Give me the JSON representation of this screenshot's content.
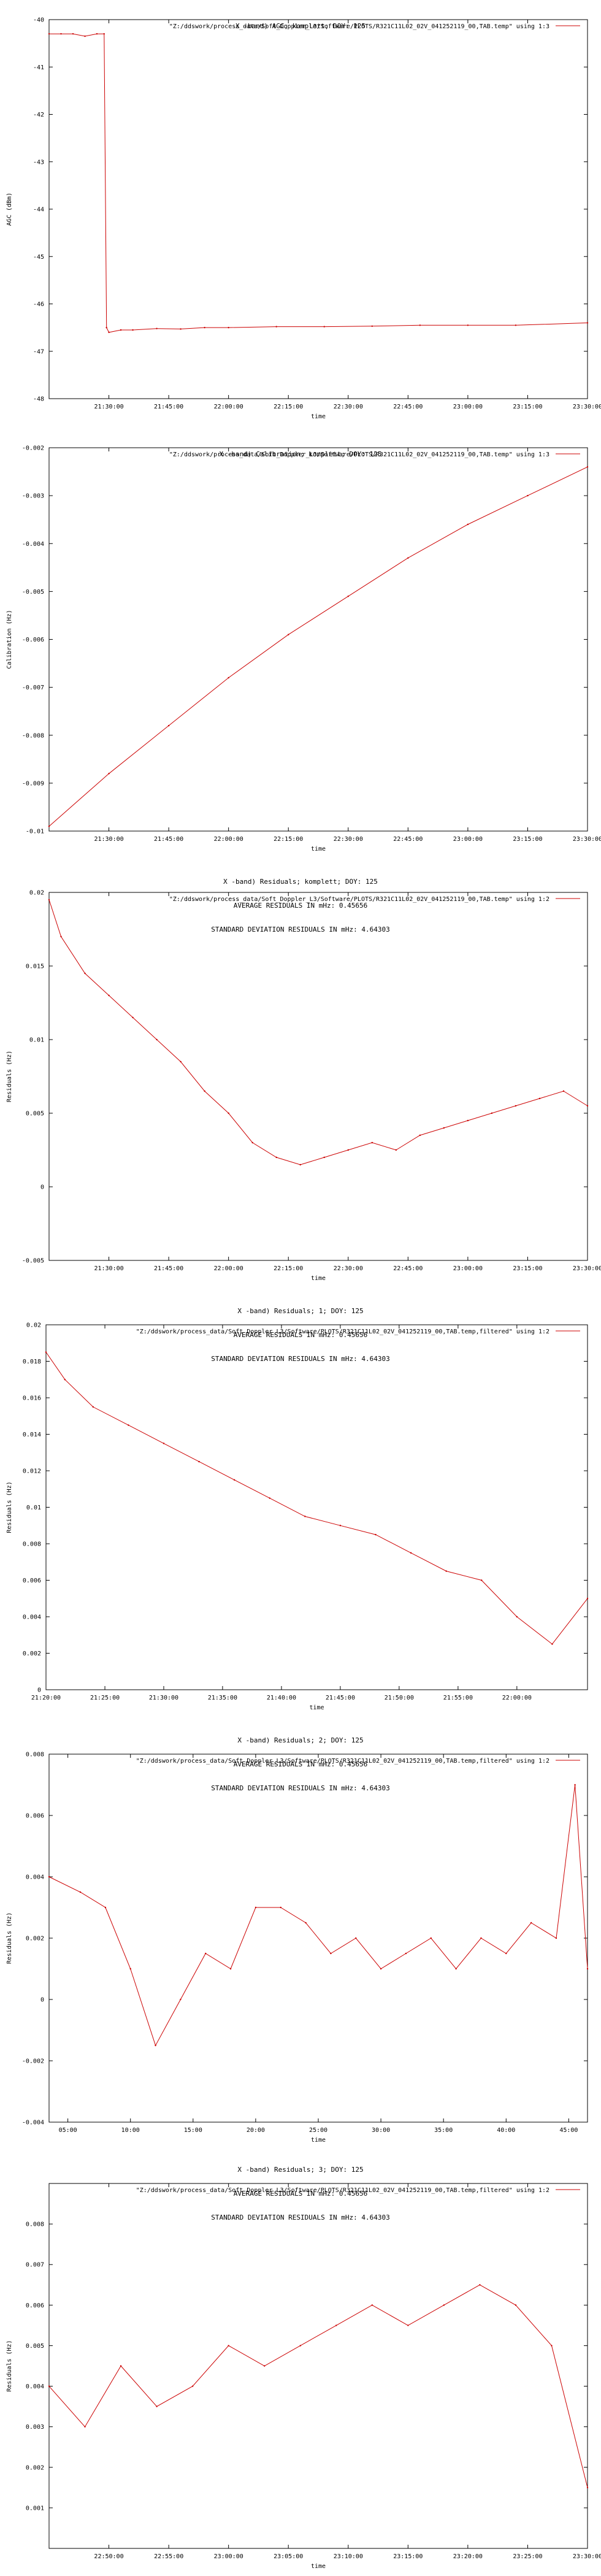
{
  "colors": {
    "series": "#cc0000",
    "axis": "#000000",
    "background": "#ffffff"
  },
  "chart_data": [
    {
      "id": "agc",
      "type": "line",
      "title_lines": [
        "X -band) AGC; komplett; DOY: 125"
      ],
      "legend": "\"Z:/ddswork/process_data/Soft_Doppler_L3/Software/PLOTS/R321C11L02_02V_041252119_00,TAB.temp\" using 1:3",
      "xlabel": "time",
      "ylabel": "AGC (dBm)",
      "xlim": [
        21.25,
        23.5
      ],
      "ylim": [
        -48,
        -40
      ],
      "xtick_values": [
        21.5,
        21.75,
        22.0,
        22.25,
        22.5,
        22.75,
        23.0,
        23.25,
        23.5
      ],
      "xtick_labels": [
        "21:30:00",
        "21:45:00",
        "22:00:00",
        "22:15:00",
        "22:30:00",
        "22:45:00",
        "23:00:00",
        "23:15:00",
        "23:30:00"
      ],
      "ytick_values": [
        -48,
        -47,
        -46,
        -45,
        -44,
        -43,
        -42,
        -41,
        -40
      ],
      "ytick_labels": [
        "-48",
        "-47",
        "-46",
        "-45",
        "-44",
        "-43",
        "-42",
        "-41",
        "-40"
      ],
      "x": [
        21.25,
        21.3,
        21.35,
        21.4,
        21.45,
        21.48,
        21.49,
        21.5,
        21.55,
        21.6,
        21.7,
        21.8,
        21.9,
        22.0,
        22.2,
        22.4,
        22.6,
        22.8,
        23.0,
        23.2,
        23.5
      ],
      "y": [
        -40.3,
        -40.3,
        -40.3,
        -40.35,
        -40.3,
        -40.3,
        -46.5,
        -46.6,
        -46.55,
        -46.55,
        -46.52,
        -46.53,
        -46.5,
        -46.5,
        -46.48,
        -46.48,
        -46.47,
        -46.45,
        -46.45,
        -46.45,
        -46.4
      ]
    },
    {
      "id": "calibration",
      "type": "line",
      "title_lines": [
        "X -band) Calibration; komplett; DOY: 125"
      ],
      "legend": "\"Z:/ddswork/process_data/Soft_Doppler_L3/Software/PLOTS/R321C11L02_02V_041252119_00,TAB.temp\" using 1:3",
      "xlabel": "time",
      "ylabel": "Calibration (Hz)",
      "xlim": [
        21.25,
        23.5
      ],
      "ylim": [
        -0.01,
        -0.002
      ],
      "xtick_values": [
        21.5,
        21.75,
        22.0,
        22.25,
        22.5,
        22.75,
        23.0,
        23.25,
        23.5
      ],
      "xtick_labels": [
        "21:30:00",
        "21:45:00",
        "22:00:00",
        "22:15:00",
        "22:30:00",
        "22:45:00",
        "23:00:00",
        "23:15:00",
        "23:30:00"
      ],
      "ytick_values": [
        -0.01,
        -0.009,
        -0.008,
        -0.007,
        -0.006,
        -0.005,
        -0.004,
        -0.003,
        -0.002
      ],
      "ytick_labels": [
        "-0.01",
        "-0.009",
        "-0.008",
        "-0.007",
        "-0.006",
        "-0.005",
        "-0.004",
        "-0.003",
        "-0.002"
      ],
      "x": [
        21.25,
        21.5,
        21.75,
        22.0,
        22.25,
        22.5,
        22.75,
        23.0,
        23.25,
        23.5
      ],
      "y": [
        -0.0099,
        -0.0088,
        -0.0078,
        -0.0068,
        -0.0059,
        -0.0051,
        -0.0043,
        -0.0036,
        -0.003,
        -0.0024
      ]
    },
    {
      "id": "residuals",
      "type": "line",
      "title_lines": [
        "X -band) Residuals; komplett; DOY: 125",
        "AVERAGE RESIDUALS IN mHz: 0.45656",
        "STANDARD DEVIATION RESIDUALS IN mHz: 4.64303"
      ],
      "legend": "\"Z:/ddswork/process_data/Soft_Doppler_L3/Software/PLOTS/R321C11L02_02V_041252119_00,TAB.temp\" using 1:2",
      "xlabel": "time",
      "ylabel": "Residuals (Hz)",
      "xlim": [
        21.25,
        23.5
      ],
      "ylim": [
        -0.005,
        0.02
      ],
      "xtick_values": [
        21.5,
        21.75,
        22.0,
        22.25,
        22.5,
        22.75,
        23.0,
        23.25,
        23.5
      ],
      "xtick_labels": [
        "21:30:00",
        "21:45:00",
        "22:00:00",
        "22:15:00",
        "22:30:00",
        "22:45:00",
        "23:00:00",
        "23:15:00",
        "23:30:00"
      ],
      "ytick_values": [
        -0.005,
        0,
        0.005,
        0.01,
        0.015,
        0.02
      ],
      "ytick_labels": [
        "-0.005",
        "0",
        "0.005",
        "0.01",
        "0.015",
        "0.02"
      ],
      "x": [
        21.25,
        21.3,
        21.4,
        21.5,
        21.6,
        21.7,
        21.8,
        21.9,
        22.0,
        22.1,
        22.2,
        22.3,
        22.4,
        22.5,
        22.6,
        22.7,
        22.8,
        22.9,
        23.0,
        23.1,
        23.2,
        23.3,
        23.4,
        23.5
      ],
      "y": [
        0.0195,
        0.017,
        0.0145,
        0.013,
        0.0115,
        0.01,
        0.0085,
        0.0065,
        0.005,
        0.003,
        0.002,
        0.0015,
        0.002,
        0.0025,
        0.003,
        0.0025,
        0.0035,
        0.004,
        0.0045,
        0.005,
        0.0055,
        0.006,
        0.0065,
        0.0055
      ]
    },
    {
      "id": "residuals-1",
      "type": "line",
      "title_lines": [
        "X -band) Residuals; 1; DOY: 125",
        "AVERAGE RESIDUALS IN mHz: 0.45656",
        "STANDARD DEVIATION RESIDUALS IN mHz: 4.64303"
      ],
      "legend": "\"Z:/ddswork/process_data/Soft_Doppler_L3/Software/PLOTS/R321C11L02_02V_041252119_00,TAB.temp,filtered\" using 1:2",
      "xlabel": "time",
      "ylabel": "Residuals (Hz)",
      "xlim": [
        21.3333,
        22.1
      ],
      "ylim": [
        0,
        0.02
      ],
      "xtick_values": [
        21.3333,
        21.4167,
        21.5,
        21.5833,
        21.6667,
        21.75,
        21.8333,
        21.9167,
        22.0
      ],
      "xtick_labels": [
        "21:20:00",
        "21:25:00",
        "21:30:00",
        "21:35:00",
        "21:40:00",
        "21:45:00",
        "21:50:00",
        "21:55:00",
        "22:00:00"
      ],
      "ytick_values": [
        0,
        0.002,
        0.004,
        0.006,
        0.008,
        0.01,
        0.012,
        0.014,
        0.016,
        0.018,
        0.02
      ],
      "ytick_labels": [
        "0",
        "0.002",
        "0.004",
        "0.006",
        "0.008",
        "0.01",
        "0.012",
        "0.014",
        "0.016",
        "0.018",
        "0.02"
      ],
      "x": [
        21.3333,
        21.36,
        21.4,
        21.45,
        21.5,
        21.55,
        21.6,
        21.65,
        21.7,
        21.75,
        21.8,
        21.85,
        21.9,
        21.95,
        22.0,
        22.05,
        22.1
      ],
      "y": [
        0.0185,
        0.017,
        0.0155,
        0.0145,
        0.0135,
        0.0125,
        0.0115,
        0.0105,
        0.0095,
        0.009,
        0.0085,
        0.0075,
        0.0065,
        0.006,
        0.004,
        0.0025,
        0.005
      ]
    },
    {
      "id": "residuals-2",
      "type": "line",
      "title_lines": [
        "X -band) Residuals; 2; DOY: 125",
        "AVERAGE RESIDUALS IN mHz: 0.45656",
        "STANDARD DEVIATION RESIDUALS IN mHz: 4.64303"
      ],
      "legend": "\"Z:/ddswork/process_data/Soft_Doppler_L3/Software/PLOTS/R321C11L02_02V_041252119_00,TAB.temp,filtered\" using 1:2",
      "xlabel": "time",
      "ylabel": "Residuals (Hz)",
      "xlim": [
        3.5,
        46.5
      ],
      "ylim": [
        -0.004,
        0.008
      ],
      "xtick_values": [
        5,
        10,
        15,
        20,
        25,
        30,
        35,
        40,
        45
      ],
      "xtick_labels": [
        "05:00",
        "10:00",
        "15:00",
        "20:00",
        "25:00",
        "30:00",
        "35:00",
        "40:00",
        "45:00"
      ],
      "ytick_values": [
        -0.004,
        -0.002,
        0,
        0.002,
        0.004,
        0.006,
        0.008
      ],
      "ytick_labels": [
        "-0.004",
        "-0.002",
        "0",
        "0.002",
        "0.004",
        "0.006",
        "0.008"
      ],
      "x": [
        3.5,
        6,
        8,
        10,
        12,
        14,
        16,
        18,
        20,
        22,
        24,
        26,
        28,
        30,
        32,
        34,
        36,
        38,
        40,
        42,
        44,
        45.5,
        46.5
      ],
      "y": [
        0.004,
        0.0035,
        0.003,
        0.001,
        -0.0015,
        0.0,
        0.0015,
        0.001,
        0.003,
        0.003,
        0.0025,
        0.0015,
        0.002,
        0.001,
        0.0015,
        0.002,
        0.001,
        0.002,
        0.0015,
        0.0025,
        0.002,
        0.007,
        0.001
      ]
    },
    {
      "id": "residuals-3",
      "type": "line",
      "title_lines": [
        "X -band) Residuals; 3; DOY: 125",
        "AVERAGE RESIDUALS IN mHz: 0.45656",
        "STANDARD DEVIATION RESIDUALS IN mHz: 4.64303"
      ],
      "legend": "\"Z:/ddswork/process_data/Soft_Doppler_L3/Software/PLOTS/R321C11L02_02V_041252119_00,TAB.temp,filtered\" using 1:2",
      "xlabel": "time",
      "ylabel": "Residuals (Hz)",
      "xlim": [
        22.75,
        23.5
      ],
      "ylim": [
        0,
        0.009
      ],
      "xtick_values": [
        22.8333,
        22.9167,
        23.0,
        23.0833,
        23.1667,
        23.25,
        23.3333,
        23.4167,
        23.5
      ],
      "xtick_labels": [
        "22:50:00",
        "22:55:00",
        "23:00:00",
        "23:05:00",
        "23:10:00",
        "23:15:00",
        "23:20:00",
        "23:25:00",
        "23:30:00"
      ],
      "ytick_values": [
        0.001,
        0.002,
        0.003,
        0.004,
        0.005,
        0.006,
        0.007,
        0.008
      ],
      "ytick_labels": [
        "0.001",
        "0.002",
        "0.003",
        "0.004",
        "0.005",
        "0.006",
        "0.007",
        "0.008"
      ],
      "x": [
        22.75,
        22.8,
        22.85,
        22.9,
        22.95,
        23.0,
        23.05,
        23.1,
        23.15,
        23.2,
        23.25,
        23.3,
        23.35,
        23.4,
        23.45,
        23.5
      ],
      "y": [
        0.004,
        0.003,
        0.0045,
        0.0035,
        0.004,
        0.005,
        0.0045,
        0.005,
        0.0055,
        0.006,
        0.0055,
        0.006,
        0.0065,
        0.006,
        0.005,
        0.0015
      ]
    }
  ]
}
